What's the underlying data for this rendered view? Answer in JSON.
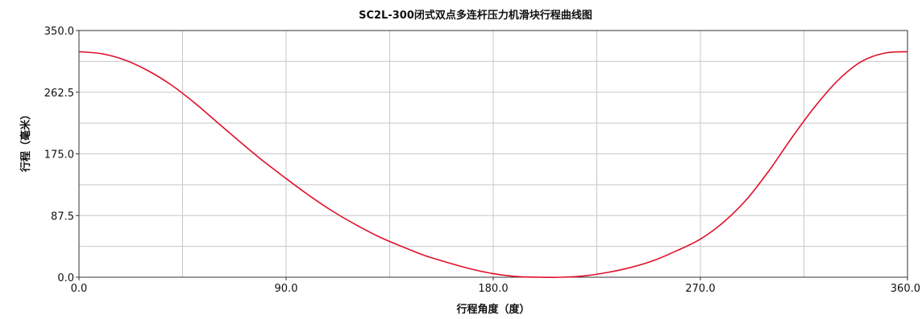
{
  "chart_data": {
    "type": "line",
    "title": "SC2L-300闭式双点多连杆压力机滑块行程曲线图",
    "xlabel": "行程角度（度）",
    "ylabel": "行程（毫米）",
    "xlim": [
      0,
      360
    ],
    "ylim": [
      0,
      350
    ],
    "x_ticks": [
      "0.0",
      "90.0",
      "180.0",
      "270.0",
      "360.0"
    ],
    "y_ticks": [
      "0.0",
      "87.5",
      "175.0",
      "262.5",
      "350.0"
    ],
    "x_grid": [
      0,
      45,
      90,
      135,
      180,
      225,
      270,
      315,
      360
    ],
    "y_grid": [
      0,
      43.75,
      87.5,
      131.25,
      175,
      218.75,
      262.5,
      306.25,
      350
    ],
    "grid": true,
    "line_color": "#e0102a",
    "series": [
      {
        "x": [
          0,
          10,
          20,
          30,
          40,
          50,
          60,
          70,
          80,
          90,
          100,
          110,
          120,
          130,
          140,
          150,
          160,
          170,
          180,
          190,
          200,
          210,
          220,
          230,
          240,
          250,
          260,
          270,
          280,
          290,
          300,
          310,
          320,
          330,
          340,
          350,
          360
        ],
        "y": [
          320,
          317,
          308,
          293,
          273,
          248,
          220,
          192,
          165,
          140,
          116,
          94,
          75,
          58,
          44,
          31,
          21,
          12,
          5,
          1,
          0,
          0,
          2,
          7,
          14,
          24,
          38,
          54,
          78,
          110,
          152,
          199,
          243,
          280,
          306,
          318,
          320
        ]
      }
    ]
  }
}
